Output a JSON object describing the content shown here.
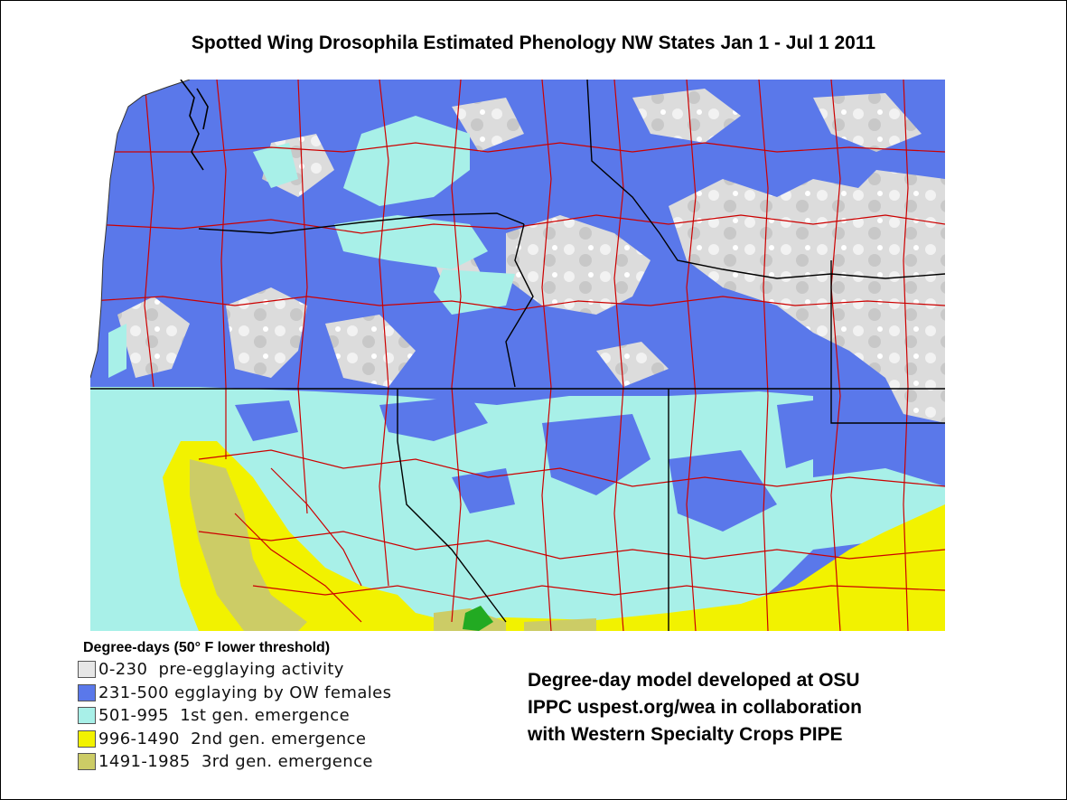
{
  "title": "Spotted Wing Drosophila Estimated Phenology NW States Jan 1 - Jul 1 2011",
  "legend": {
    "title": "Degree-days (50° F lower threshold)",
    "items": [
      {
        "label": "0-230  pre-egglaying activity",
        "color": "#e6e6e6"
      },
      {
        "label": "231-500 egglaying by OW females",
        "color": "#5a78ea"
      },
      {
        "label": "501-995  1st gen. emergence",
        "color": "#a8f0e8"
      },
      {
        "label": "996-1490  2nd gen. emergence",
        "color": "#f2f200"
      },
      {
        "label": "1491-1985  3rd gen. emergence",
        "color": "#cccc66"
      }
    ]
  },
  "credits": [
    "Degree-day model developed at OSU",
    "IPPC uspest.org/wea in collaboration",
    "with Western Specialty Crops PIPE"
  ],
  "colors": {
    "county_lines": "#cc0000",
    "state_lines": "#000000",
    "peak_green": "#22aa22"
  }
}
